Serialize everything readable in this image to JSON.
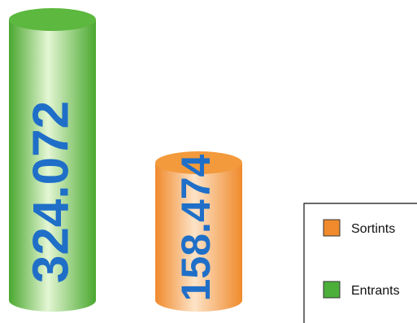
{
  "chart_data": {
    "type": "bar",
    "style": "3d-cylinder",
    "categories": [
      "Entrants",
      "Sortints"
    ],
    "values": [
      324072,
      158474
    ],
    "value_labels": [
      "324.072",
      "158.474"
    ],
    "label_color": "#1f6fc8",
    "label_orientation": "vertical",
    "legend": {
      "placement": "bottom-right",
      "entries": [
        {
          "label": "Sortints",
          "color": "#f08a2c"
        },
        {
          "label": "Entrants",
          "color": "#4caf3a"
        }
      ]
    },
    "colors": {
      "Entrants": {
        "dark": "#4aa82f",
        "light": "#e4f6d4",
        "top": "#5cb83e"
      },
      "Sortints": {
        "dark": "#f08a2c",
        "light": "#fde3c7",
        "top": "#f39a3c"
      }
    },
    "grid": false,
    "title": "",
    "xlabel": "",
    "ylabel": ""
  }
}
